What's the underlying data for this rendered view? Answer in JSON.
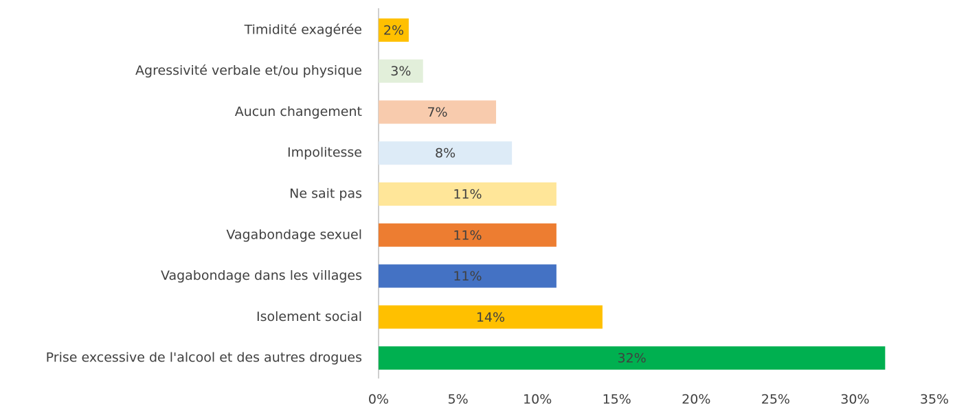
{
  "chart_data": {
    "type": "barh",
    "categories": [
      "Timidité exagérée",
      "Agressivité verbale et/ou physique",
      "Aucun changement",
      "Impolitesse",
      "Ne sait pas",
      "Vagabondage sexuel",
      "Vagabondage dans les villages",
      "Isolement social",
      "Prise excessive de l'alcool et des autres drogues"
    ],
    "values": [
      1.9,
      2.8,
      7.4,
      8.4,
      11.2,
      11.2,
      11.2,
      14.1,
      31.9
    ],
    "value_labels": [
      "2%",
      "3%",
      "7%",
      "8%",
      "11%",
      "11%",
      "11%",
      "14%",
      "32%"
    ],
    "colors": [
      "#FFC000",
      "#E2EFDA",
      "#F8CBAD",
      "#DDEBF7",
      "#FFE699",
      "#ED7D31",
      "#4472C4",
      "#FFC000",
      "#00B050"
    ],
    "xlim": [
      0,
      35
    ],
    "xticks": [
      {
        "value": 0,
        "label": "0%"
      },
      {
        "value": 5,
        "label": "5%"
      },
      {
        "value": 10,
        "label": "10%"
      },
      {
        "value": 15,
        "label": "15%"
      },
      {
        "value": 20,
        "label": "20%"
      },
      {
        "value": 25,
        "label": "25%"
      },
      {
        "value": 30,
        "label": "30%"
      },
      {
        "value": 35,
        "label": "35%"
      }
    ],
    "grid": false
  }
}
